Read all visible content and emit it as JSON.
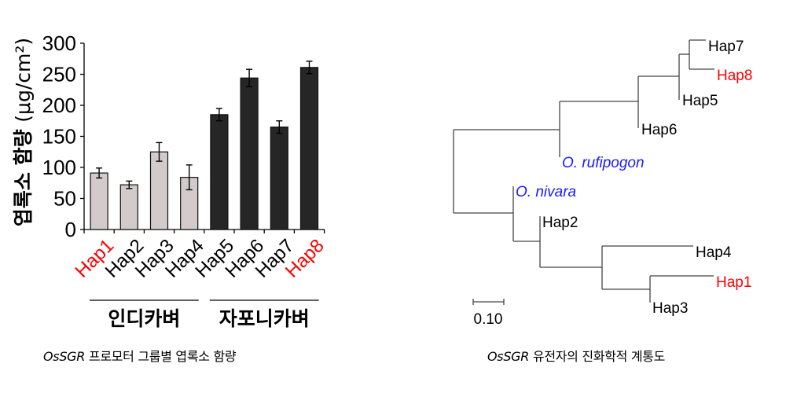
{
  "chart_data": [
    {
      "type": "bar",
      "title": "",
      "xlabel": "",
      "ylabel": "엽록소 함량 (μg/cm²)",
      "ylim": [
        0,
        300
      ],
      "yticks": [
        0,
        50,
        100,
        150,
        200,
        250,
        300
      ],
      "grid": false,
      "categories": [
        "Hap1",
        "Hap2",
        "Hap3",
        "Hap4",
        "Hap5",
        "Hap6",
        "Hap7",
        "Hap8"
      ],
      "values": [
        91,
        72,
        125,
        84,
        185,
        244,
        165,
        261
      ],
      "errors": [
        8,
        6,
        15,
        20,
        10,
        14,
        10,
        10
      ],
      "bar_colors": [
        "#d3cbcb",
        "#d3cbcb",
        "#d3cbcb",
        "#d3cbcb",
        "#262626",
        "#262626",
        "#262626",
        "#262626"
      ],
      "label_colors": [
        "#ff0000",
        "#000000",
        "#000000",
        "#000000",
        "#000000",
        "#000000",
        "#000000",
        "#ff0000"
      ],
      "groups": [
        {
          "label": "인디카벼",
          "members": [
            "Hap1",
            "Hap2",
            "Hap3",
            "Hap4"
          ]
        },
        {
          "label": "자포니카벼",
          "members": [
            "Hap5",
            "Hap6",
            "Hap7",
            "Hap8"
          ]
        }
      ],
      "caption": {
        "italic": "OsSGR",
        "text": " 프로모터 그룹별 엽록소 함량"
      }
    },
    {
      "type": "tree",
      "title": "",
      "leaves": [
        {
          "label": "Hap7",
          "color": "#000000",
          "italic": false
        },
        {
          "label": "Hap8",
          "color": "#ff0000",
          "italic": false
        },
        {
          "label": "Hap5",
          "color": "#000000",
          "italic": false
        },
        {
          "label": "Hap6",
          "color": "#000000",
          "italic": false
        },
        {
          "label": "O. rufipogon",
          "color": "#1a1aff",
          "italic": true
        },
        {
          "label": "O. nivara",
          "color": "#1a1aff",
          "italic": true
        },
        {
          "label": "Hap2",
          "color": "#000000",
          "italic": false
        },
        {
          "label": "Hap4",
          "color": "#000000",
          "italic": false
        },
        {
          "label": "Hap1",
          "color": "#ff0000",
          "italic": false
        },
        {
          "label": "Hap3",
          "color": "#000000",
          "italic": false
        }
      ],
      "newick": "((((((Hap7,Hap8),Hap5),Hap6),O. rufipogon),(O. nivara,(Hap2,(Hap4,(Hap1,Hap3))))));",
      "scale_bar": {
        "value": "0.10"
      },
      "caption": {
        "italic": "OsSGR",
        "text": " 유전자의 진화학적 계통도"
      }
    }
  ],
  "colors": {
    "indica_bar": "#d3cbcb",
    "japonica_bar": "#262626",
    "highlight": "#ff0000",
    "wild_species": "#1a1aff",
    "tree_line": "#444444"
  }
}
